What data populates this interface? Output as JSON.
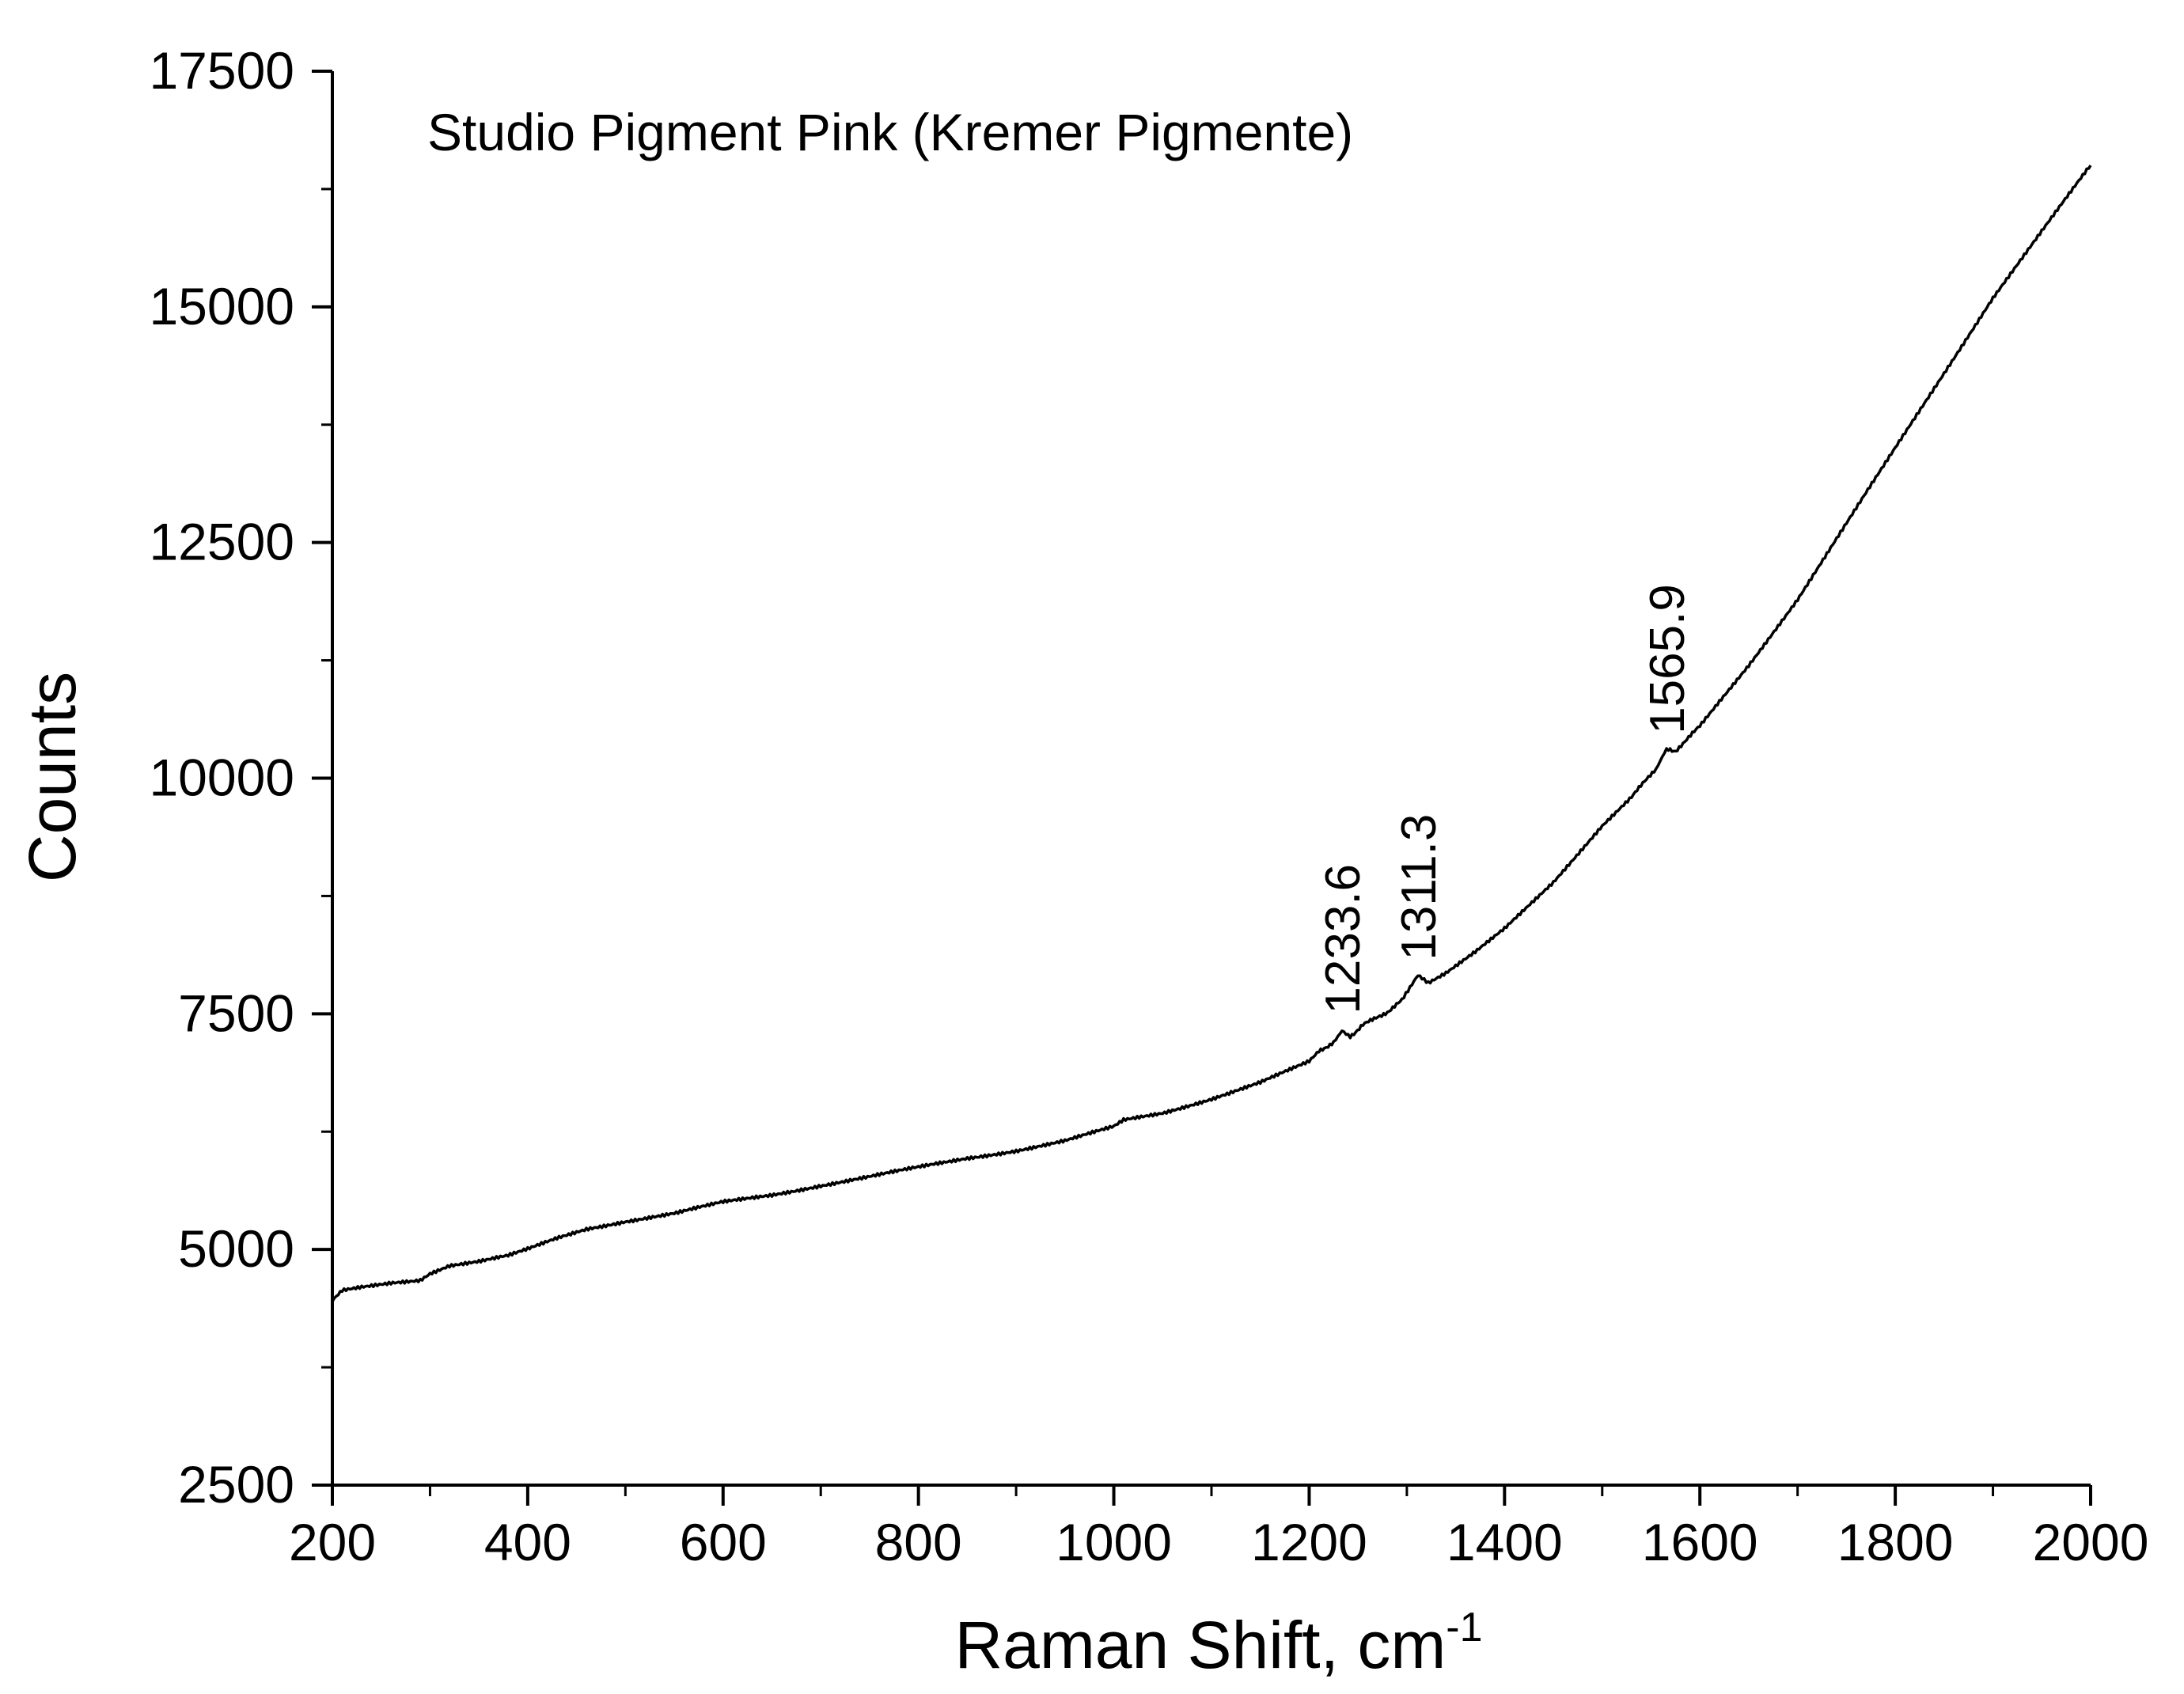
{
  "chart_data": {
    "type": "line",
    "title": "Studio Pigment Pink (Kremer Pigmente)",
    "xlabel": "Raman Shift, cm",
    "xlabel_superscript": "-1",
    "ylabel": "Counts",
    "xlim": [
      200,
      2000
    ],
    "ylim": [
      2500,
      17500
    ],
    "xticks": [
      "200",
      "400",
      "600",
      "800",
      "1000",
      "1200",
      "1400",
      "1600",
      "1800",
      "2000"
    ],
    "yticks": [
      "2500",
      "5000",
      "7500",
      "10000",
      "12500",
      "15000",
      "17500"
    ],
    "grid": false,
    "legend": "none",
    "line_color": "#000000",
    "series": [
      {
        "x": [
          200,
          210,
          230,
          260,
          290,
          300,
          320,
          350,
          380,
          400,
          430,
          460,
          500,
          550,
          600,
          650,
          700,
          750,
          800,
          850,
          900,
          950,
          1000,
          1010,
          1050,
          1100,
          1150,
          1200,
          1210,
          1225,
          1233.6,
          1242,
          1255,
          1280,
          1295,
          1311.3,
          1322,
          1340,
          1370,
          1400,
          1450,
          1500,
          1530,
          1555,
          1565.9,
          1575,
          1600,
          1650,
          1700,
          1750,
          1800,
          1850,
          1900,
          1950,
          2000
        ],
        "y": [
          4450,
          4560,
          4600,
          4650,
          4680,
          4750,
          4830,
          4870,
          4930,
          5000,
          5120,
          5220,
          5300,
          5380,
          5500,
          5580,
          5680,
          5770,
          5870,
          5970,
          6050,
          6150,
          6300,
          6370,
          6450,
          6600,
          6770,
          6990,
          7100,
          7200,
          7330,
          7260,
          7380,
          7520,
          7640,
          7900,
          7830,
          7930,
          8150,
          8400,
          8900,
          9500,
          9800,
          10100,
          10300,
          10290,
          10550,
          11200,
          11900,
          12700,
          13500,
          14300,
          15100,
          15800,
          16500
        ]
      }
    ],
    "annotations": [
      {
        "text": "1233.6",
        "x": 1233.6,
        "y": 7330
      },
      {
        "text": "1311.3",
        "x": 1311.3,
        "y": 7900
      },
      {
        "text": "1565.9",
        "x": 1565.9,
        "y": 10300
      }
    ]
  }
}
